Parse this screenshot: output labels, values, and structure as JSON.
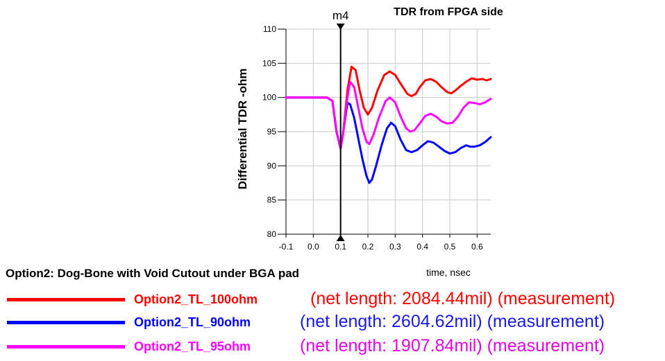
{
  "chart_data": {
    "type": "line",
    "title": "TDR from FPGA side",
    "xlabel": "time, nsec",
    "ylabel": "Differential TDR -ohm",
    "xlim": [
      -0.1,
      0.65
    ],
    "ylim": [
      80,
      110
    ],
    "x_ticks": [
      "-0.1",
      "0.0",
      "0.1",
      "0.2",
      "0.3",
      "0.4",
      "0.5",
      "0.6"
    ],
    "y_ticks": [
      "80",
      "85",
      "90",
      "95",
      "100",
      "105",
      "110"
    ],
    "grid": true,
    "marker": {
      "label": "m4",
      "x": 0.1
    },
    "series": [
      {
        "name": "Option2_TL_100ohm",
        "color": "#ff0000",
        "points": [
          [
            -0.1,
            100
          ],
          [
            0.0,
            100
          ],
          [
            0.05,
            100
          ],
          [
            0.07,
            99.5
          ],
          [
            0.085,
            95
          ],
          [
            0.1,
            92.5
          ],
          [
            0.11,
            95
          ],
          [
            0.125,
            101
          ],
          [
            0.14,
            104.5
          ],
          [
            0.155,
            104
          ],
          [
            0.17,
            101
          ],
          [
            0.185,
            98.5
          ],
          [
            0.2,
            97.5
          ],
          [
            0.215,
            98.5
          ],
          [
            0.235,
            101
          ],
          [
            0.26,
            103.3
          ],
          [
            0.28,
            103.8
          ],
          [
            0.3,
            103.3
          ],
          [
            0.32,
            102
          ],
          [
            0.345,
            100.5
          ],
          [
            0.36,
            100.2
          ],
          [
            0.375,
            100.5
          ],
          [
            0.39,
            101.5
          ],
          [
            0.41,
            102.5
          ],
          [
            0.43,
            102.7
          ],
          [
            0.45,
            102.3
          ],
          [
            0.47,
            101.5
          ],
          [
            0.49,
            100.8
          ],
          [
            0.505,
            100.6
          ],
          [
            0.52,
            101
          ],
          [
            0.54,
            101.7
          ],
          [
            0.56,
            102.3
          ],
          [
            0.58,
            102.8
          ],
          [
            0.6,
            102.6
          ],
          [
            0.62,
            102.7
          ],
          [
            0.635,
            102.5
          ],
          [
            0.65,
            102.7
          ]
        ]
      },
      {
        "name": "Option2_TL_90ohm",
        "color": "#0000ff",
        "points": [
          [
            -0.1,
            100
          ],
          [
            0.0,
            100
          ],
          [
            0.05,
            100
          ],
          [
            0.07,
            99.5
          ],
          [
            0.085,
            95
          ],
          [
            0.1,
            92.5
          ],
          [
            0.11,
            95
          ],
          [
            0.125,
            99.2
          ],
          [
            0.135,
            99
          ],
          [
            0.15,
            97
          ],
          [
            0.165,
            94
          ],
          [
            0.18,
            91
          ],
          [
            0.195,
            88.5
          ],
          [
            0.205,
            87.5
          ],
          [
            0.215,
            88
          ],
          [
            0.23,
            90
          ],
          [
            0.25,
            93
          ],
          [
            0.27,
            95.5
          ],
          [
            0.285,
            96.3
          ],
          [
            0.3,
            95.8
          ],
          [
            0.32,
            93.8
          ],
          [
            0.34,
            92.3
          ],
          [
            0.36,
            92
          ],
          [
            0.38,
            92.3
          ],
          [
            0.4,
            93
          ],
          [
            0.42,
            93.6
          ],
          [
            0.44,
            93.4
          ],
          [
            0.46,
            92.8
          ],
          [
            0.48,
            92.2
          ],
          [
            0.5,
            91.8
          ],
          [
            0.52,
            92
          ],
          [
            0.54,
            92.6
          ],
          [
            0.56,
            93
          ],
          [
            0.575,
            92.8
          ],
          [
            0.59,
            92.8
          ],
          [
            0.61,
            93
          ],
          [
            0.63,
            93.5
          ],
          [
            0.65,
            94.2
          ]
        ]
      },
      {
        "name": "Option2_TL_95ohm",
        "color": "#ff00ff",
        "points": [
          [
            -0.1,
            100
          ],
          [
            0.0,
            100
          ],
          [
            0.05,
            100
          ],
          [
            0.07,
            99.5
          ],
          [
            0.085,
            95
          ],
          [
            0.1,
            92.5
          ],
          [
            0.11,
            95
          ],
          [
            0.125,
            100
          ],
          [
            0.135,
            102.3
          ],
          [
            0.15,
            101.5
          ],
          [
            0.165,
            98.5
          ],
          [
            0.18,
            95.5
          ],
          [
            0.195,
            93.5
          ],
          [
            0.205,
            93.2
          ],
          [
            0.22,
            94.5
          ],
          [
            0.24,
            97
          ],
          [
            0.265,
            99.5
          ],
          [
            0.28,
            100
          ],
          [
            0.3,
            99.3
          ],
          [
            0.32,
            97.2
          ],
          [
            0.34,
            95.5
          ],
          [
            0.355,
            95
          ],
          [
            0.37,
            95.2
          ],
          [
            0.39,
            96.2
          ],
          [
            0.41,
            97.3
          ],
          [
            0.43,
            97.6
          ],
          [
            0.45,
            97.2
          ],
          [
            0.47,
            96.5
          ],
          [
            0.49,
            96.2
          ],
          [
            0.51,
            96.3
          ],
          [
            0.53,
            97.2
          ],
          [
            0.55,
            98.5
          ],
          [
            0.57,
            99.3
          ],
          [
            0.59,
            99.2
          ],
          [
            0.61,
            99
          ],
          [
            0.63,
            99.3
          ],
          [
            0.65,
            99.8
          ]
        ]
      }
    ]
  },
  "caption": "Option2: Dog-Bone with Void Cutout under BGA pad",
  "legend": [
    {
      "name": "Option2_TL_100ohm",
      "note": "(net length: 2084.44mil) (measurement)",
      "color": "#ff0000",
      "note_color": "#ff0000"
    },
    {
      "name": "Option2_TL_90ohm",
      "note": "(net length: 2604.62mil) (measurement)",
      "color": "#0000ff",
      "note_color": "#1a1ae6"
    },
    {
      "name": "Option2_TL_95ohm",
      "note": "(net length: 1907.84mil) (measurement)",
      "color": "#ff00ff",
      "note_color": "#e600e6"
    }
  ]
}
